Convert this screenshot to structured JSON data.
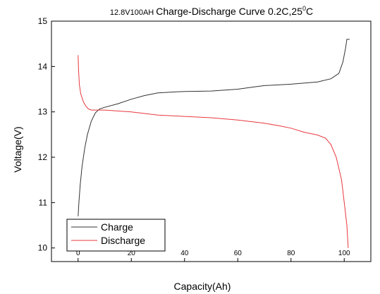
{
  "chart_data": {
    "type": "line",
    "title_prefix": "12.8V100AH",
    "title_main": "Charge-Discharge Curve  0.2C,25",
    "title_sup": "0",
    "title_suffix": "C",
    "xlabel": "Capacity(Ah)",
    "ylabel": "Voltage(V)",
    "xlim": [
      -10,
      110
    ],
    "ylim": [
      9.7,
      15
    ],
    "x_ticks": [
      0,
      20,
      40,
      60,
      80,
      100
    ],
    "y_ticks": [
      10,
      11,
      12,
      13,
      14,
      15
    ],
    "grid": false,
    "legend_position": "bottom-left",
    "series": [
      {
        "name": "Charge",
        "color": "#333333",
        "points": [
          [
            0,
            10.7
          ],
          [
            0.3,
            11.0
          ],
          [
            0.8,
            11.4
          ],
          [
            1.5,
            11.8
          ],
          [
            2.5,
            12.2
          ],
          [
            3.5,
            12.5
          ],
          [
            5,
            12.8
          ],
          [
            6.5,
            12.98
          ],
          [
            8,
            13.06
          ],
          [
            10,
            13.1
          ],
          [
            15,
            13.18
          ],
          [
            20,
            13.28
          ],
          [
            25,
            13.36
          ],
          [
            30,
            13.42
          ],
          [
            40,
            13.45
          ],
          [
            50,
            13.46
          ],
          [
            60,
            13.5
          ],
          [
            65,
            13.54
          ],
          [
            70,
            13.58
          ],
          [
            80,
            13.61
          ],
          [
            90,
            13.66
          ],
          [
            95,
            13.73
          ],
          [
            98,
            13.85
          ],
          [
            99.5,
            14.1
          ],
          [
            100.5,
            14.4
          ],
          [
            101,
            14.6
          ],
          [
            102,
            14.6
          ]
        ]
      },
      {
        "name": "Discharge",
        "color": "#e8383d",
        "points": [
          [
            0,
            14.25
          ],
          [
            0.2,
            13.9
          ],
          [
            0.5,
            13.6
          ],
          [
            1,
            13.4
          ],
          [
            2,
            13.22
          ],
          [
            3,
            13.12
          ],
          [
            4,
            13.06
          ],
          [
            5,
            13.04
          ],
          [
            10,
            13.04
          ],
          [
            20,
            13.0
          ],
          [
            30,
            12.93
          ],
          [
            40,
            12.9
          ],
          [
            50,
            12.87
          ],
          [
            60,
            12.82
          ],
          [
            70,
            12.75
          ],
          [
            75,
            12.7
          ],
          [
            80,
            12.64
          ],
          [
            85,
            12.55
          ],
          [
            90,
            12.49
          ],
          [
            93,
            12.42
          ],
          [
            95,
            12.28
          ],
          [
            97,
            12.0
          ],
          [
            99,
            11.5
          ],
          [
            100,
            11.0
          ],
          [
            101,
            10.5
          ],
          [
            101.5,
            10.0
          ]
        ]
      }
    ]
  }
}
